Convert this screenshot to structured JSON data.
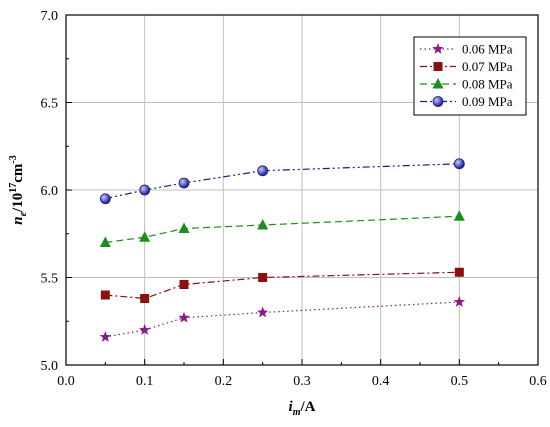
{
  "chart_data": {
    "type": "line",
    "title": "",
    "x": [
      0.05,
      0.1,
      0.15,
      0.25,
      0.5
    ],
    "xlim": [
      0.0,
      0.6
    ],
    "ylim": [
      5.0,
      7.0
    ],
    "x_ticks": [
      "0.0",
      "0.1",
      "0.2",
      "0.3",
      "0.4",
      "0.5",
      "0.6"
    ],
    "y_ticks": [
      "5.0",
      "5.5",
      "6.0",
      "6.5",
      "7.0"
    ],
    "xlabel": {
      "base": "i",
      "sub": "m",
      "rest": "/A"
    },
    "ylabel": {
      "base": "n",
      "sub": "e",
      "mid": "/10",
      "sup": "17",
      "unit": "cm",
      "unit_sup": "-3"
    },
    "grid": true,
    "legend_position": "top-right",
    "series": [
      {
        "name": "0.06 MPa",
        "values": [
          5.16,
          5.2,
          5.27,
          5.3,
          5.36
        ],
        "color": "#8B1A8B",
        "marker": "star",
        "dash": "dotted"
      },
      {
        "name": "0.07 MPa",
        "values": [
          5.4,
          5.38,
          5.46,
          5.5,
          5.53
        ],
        "color": "#8B1010",
        "marker": "square",
        "dash": "dashdot"
      },
      {
        "name": "0.08 MPa",
        "values": [
          5.7,
          5.73,
          5.78,
          5.8,
          5.85
        ],
        "color": "#1E8C1E",
        "marker": "triangle",
        "dash": "dashed"
      },
      {
        "name": "0.09 MPa",
        "values": [
          5.95,
          6.0,
          6.04,
          6.11,
          6.15
        ],
        "color": "#1A1A8C",
        "marker": "circle",
        "dash": "dashdotdot"
      }
    ]
  }
}
